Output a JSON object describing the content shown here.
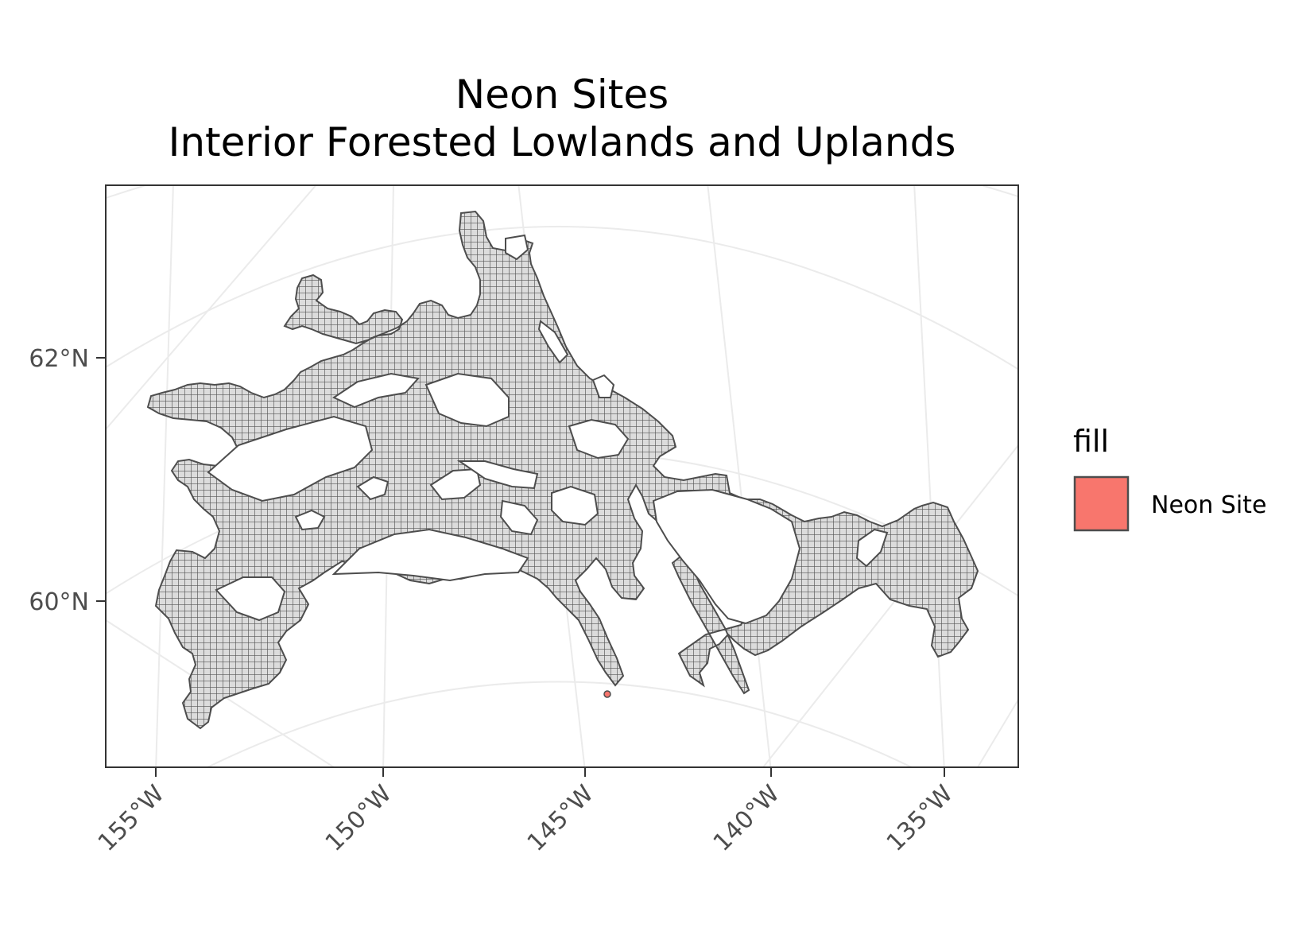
{
  "title": {
    "line1": "Neon Sites",
    "line2": "Interior Forested Lowlands and Uplands"
  },
  "y_axis": {
    "ticks": [
      "62°N",
      "60°N"
    ]
  },
  "x_axis": {
    "ticks": [
      "155°W",
      "150°W",
      "145°W",
      "140°W",
      "135°W"
    ]
  },
  "legend": {
    "title": "fill",
    "items": [
      {
        "label": "Neon Site",
        "color": "#F8766D"
      }
    ]
  },
  "colors": {
    "region_fill": "#d9d9d9",
    "region_hatch": "#4d4d4d",
    "region_border": "#4d4d4d",
    "neon_site": "#F8766D",
    "graticule": "#ebebeb",
    "panel_border": "#333333"
  },
  "map_data": {
    "type": "map",
    "layers": [
      "ecoregion",
      "neon-site"
    ],
    "ecoregion_name": "Interior Forested Lowlands and Uplands",
    "neon_sites": [
      {
        "name": "Neon Site"
      }
    ],
    "grid": true
  }
}
